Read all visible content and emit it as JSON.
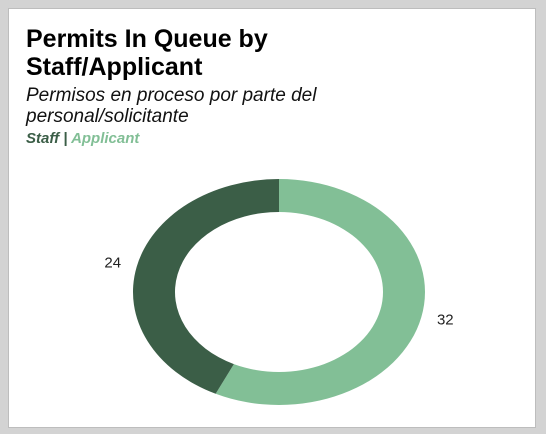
{
  "chart_data": {
    "type": "pie",
    "donut": true,
    "title": "Permits In Queue by Staff/Applicant",
    "subtitle": "Permisos en proceso por parte del personal/solicitante",
    "categories": [
      "Staff",
      "Applicant"
    ],
    "values": [
      24,
      32
    ],
    "colors": [
      "#3b5e47",
      "#82bf96"
    ],
    "legend_separator": "|"
  }
}
